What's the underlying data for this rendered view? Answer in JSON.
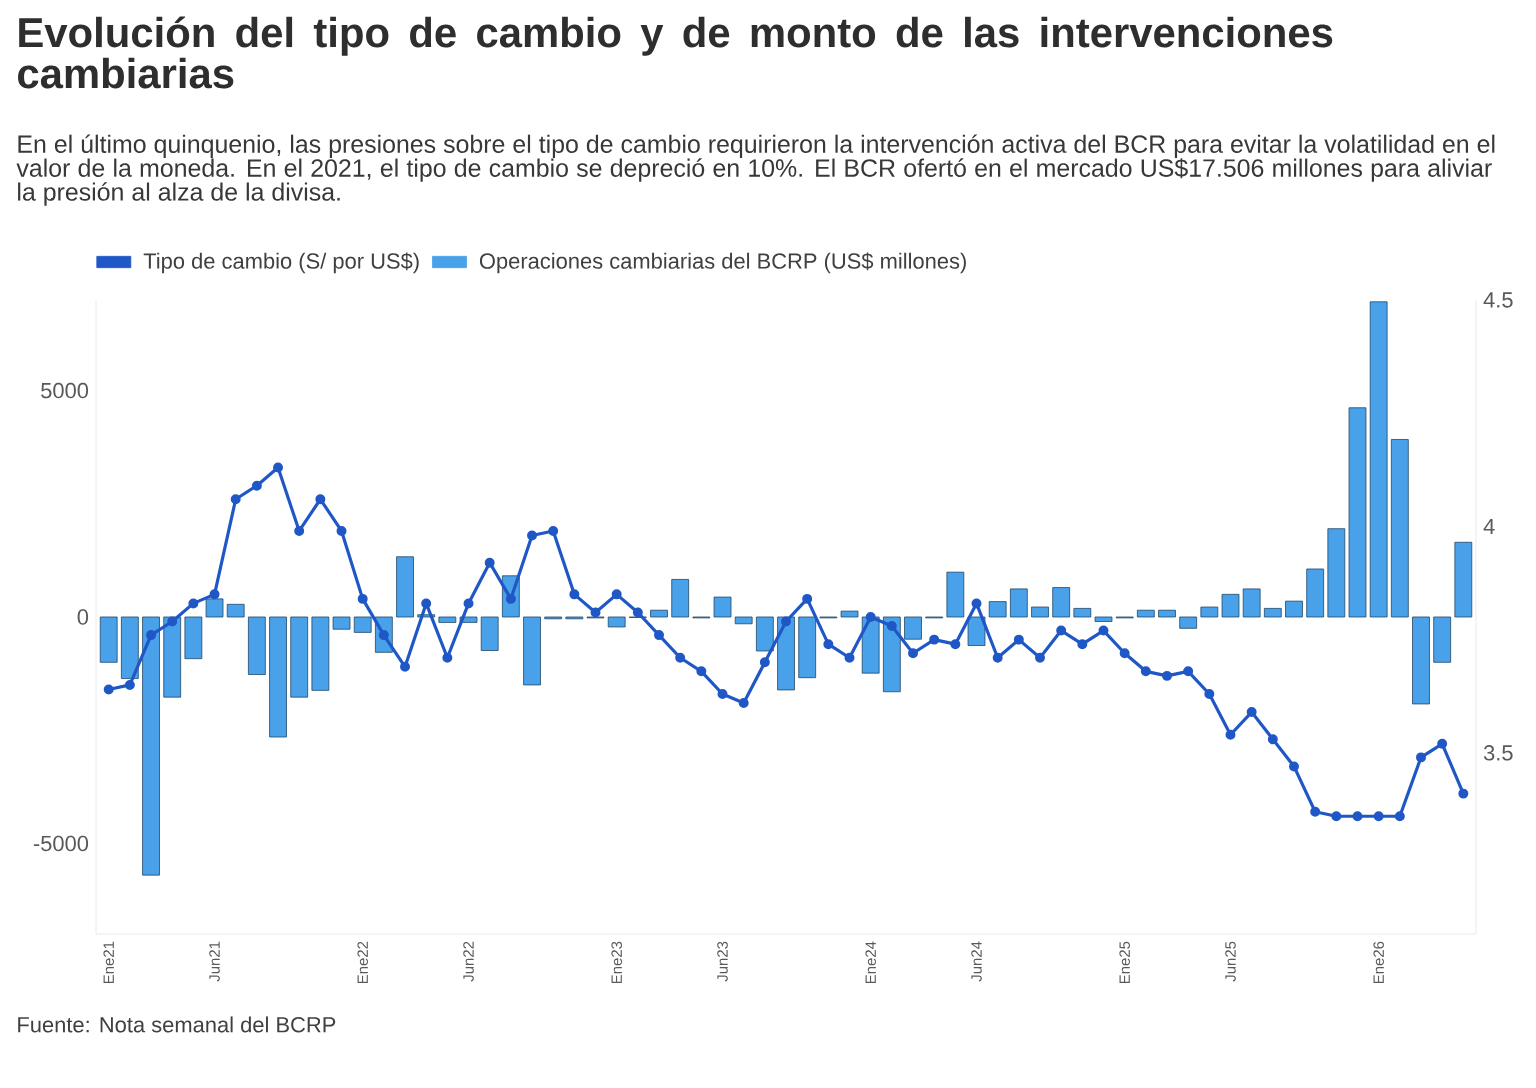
{
  "chart_data": {
    "type": "bar",
    "title": "Evolución del tipo de cambio y de monto de las intervenciones cambiarias",
    "subtitle": "En el último quinquenio, las presiones sobre el tipo de cambio requirieron la intervención activa del BCR para evitar la volatilidad en el valor de la moneda. En el 2021, el tipo de cambio se depreció en 10%. El BCR ofertó en el mercado US$17.506 millones para aliviar la presión al alza de la divisa.",
    "categories": [
      "Ene21",
      null,
      null,
      null,
      null,
      "Jun21",
      null,
      null,
      null,
      null,
      null,
      null,
      "Ene22",
      null,
      null,
      null,
      null,
      "Jun22",
      null,
      null,
      null,
      null,
      null,
      null,
      "Ene23",
      null,
      null,
      null,
      null,
      "Jun23",
      null,
      null,
      null,
      null,
      null,
      null,
      "Ene24",
      null,
      null,
      null,
      null,
      "Jun24",
      null,
      null,
      null,
      null,
      null,
      null,
      "Ene25",
      null,
      null,
      null,
      null,
      "Jun25",
      null,
      null,
      null,
      null,
      null,
      null,
      "Ene26",
      null,
      null,
      null,
      null
    ],
    "series": [
      {
        "name": "Tipo de cambio (S/ por US$)",
        "type": "line",
        "axis": "y2",
        "color": "#1f58c6",
        "values": [
          3.64,
          3.65,
          3.76,
          3.79,
          3.83,
          3.85,
          4.06,
          4.09,
          4.13,
          3.99,
          4.06,
          3.99,
          3.84,
          3.76,
          3.69,
          3.83,
          3.71,
          3.83,
          3.92,
          3.84,
          3.98,
          3.99,
          3.85,
          3.81,
          3.85,
          3.81,
          3.76,
          3.71,
          3.68,
          3.63,
          3.61,
          3.7,
          3.79,
          3.84,
          3.74,
          3.71,
          3.8,
          3.78,
          3.72,
          3.75,
          3.74,
          3.83,
          3.71,
          3.75,
          3.71,
          3.77,
          3.74,
          3.77,
          3.72,
          3.68,
          3.67,
          3.68,
          3.63,
          3.54,
          3.59,
          3.53,
          3.47,
          3.37,
          3.36,
          3.36,
          3.36,
          3.36,
          3.49,
          3.52,
          3.41
        ]
      },
      {
        "name": "Operaciones cambiarias del BCRP (US$ millones)",
        "color": "#49a1ea",
        "values": [
          -1000,
          -1360,
          -5700,
          -1770,
          -920,
          400,
          280,
          -1270,
          -2650,
          -1770,
          -1620,
          -270,
          -340,
          -780,
          1330,
          50,
          -120,
          -120,
          -740,
          910,
          -1500,
          -40,
          -40,
          -20,
          -220,
          -10,
          150,
          830,
          -20,
          440,
          -150,
          -750,
          -1610,
          -1340,
          -20,
          130,
          -1240,
          -1650,
          -490,
          -20,
          990,
          -630,
          340,
          620,
          220,
          650,
          190,
          -100,
          -20,
          150,
          150,
          -250,
          220,
          500,
          620,
          190,
          350,
          1060,
          1950,
          4620,
          6960,
          3920,
          -1920,
          -1000,
          1650
        ]
      }
    ],
    "ylim": [
      -7000,
      7000
    ],
    "yticks": [
      -5000,
      0,
      5000
    ],
    "y2lim": [
      3.1,
      4.5
    ],
    "y2ticks": [
      3.5,
      4,
      4.5
    ],
    "legend": "top left",
    "marker": "circle",
    "annotations": [
      "Fuente: Nota semanal del BCRP"
    ]
  }
}
